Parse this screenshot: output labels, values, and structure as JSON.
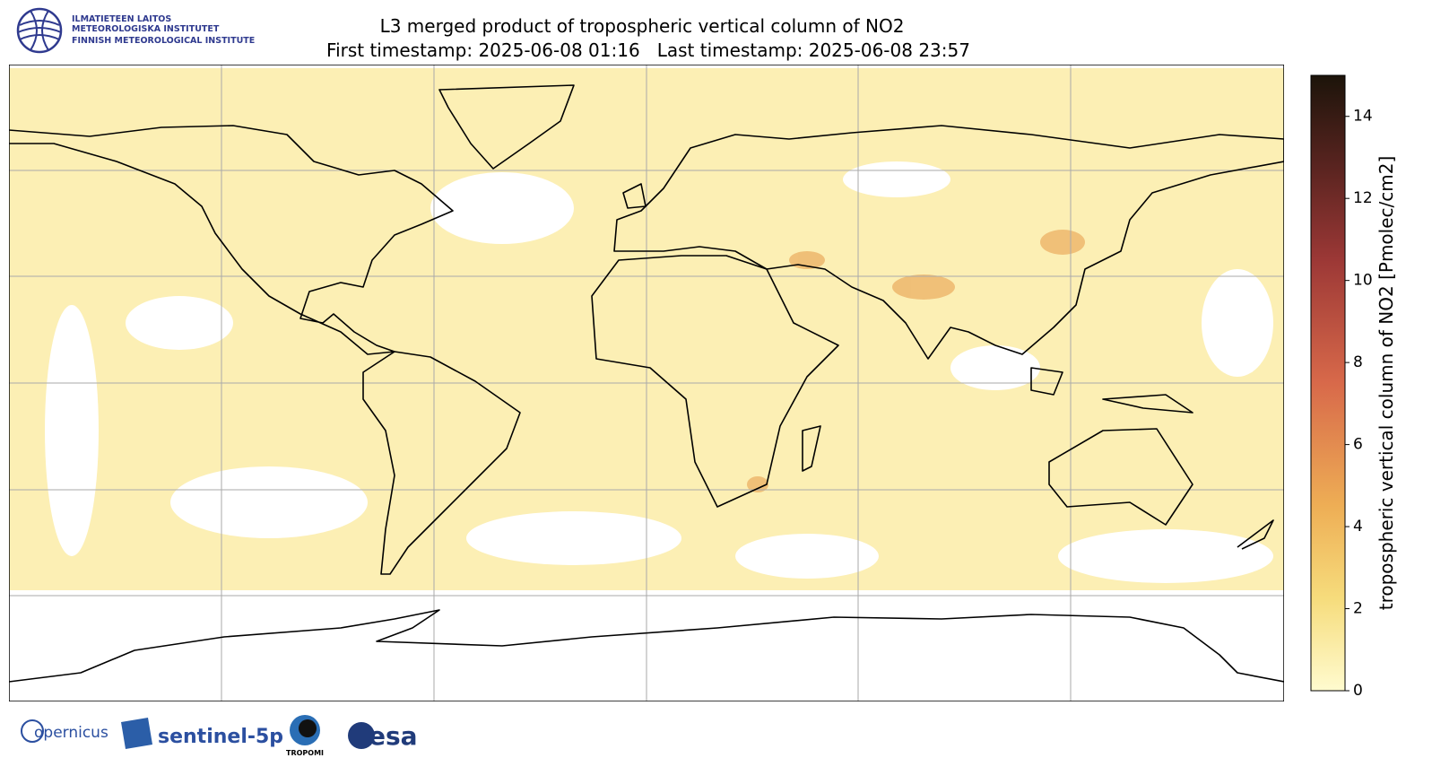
{
  "header": {
    "institute": [
      "ILMATIETEEN LAITOS",
      "METEOROLOGISKA INSTITUTET",
      "FINNISH METEOROLOGICAL INSTITUTE"
    ],
    "title": "L3 merged product of tropospheric vertical column of NO2",
    "subtitle": "First timestamp: 2025-06-08 01:16   Last timestamp: 2025-06-08 23:57"
  },
  "colorbar": {
    "label": "tropospheric vertical column of NO2 [Pmolec/cm2]",
    "lim": [
      0,
      15
    ],
    "ticks": [
      0,
      2,
      4,
      6,
      8,
      10,
      12,
      14
    ]
  },
  "footer": {
    "logos": [
      "opernicus",
      "sentinel-5p",
      "TROPOMI",
      "esa"
    ]
  }
}
